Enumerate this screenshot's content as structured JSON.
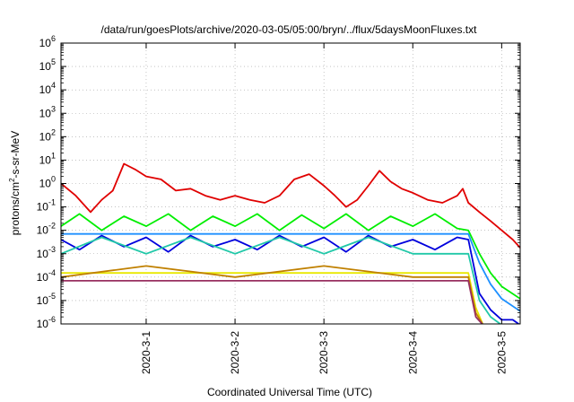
{
  "chart_data": {
    "type": "line",
    "title": "/data/run/goesPlots/archive/2020-03-05/05:00/bryn/../flux/5daysMoonFluxes.txt",
    "xlabel": "Coordinated Universal Time (UTC)",
    "ylabel": "protons/cm²-s-sr-MeV",
    "y_scale": "log",
    "ylim_exponent": [
      -6,
      6
    ],
    "xlim": [
      "2020-02-29 01:00",
      "2020-03-05 05:00"
    ],
    "x_ticks": [
      "2020-3-1",
      "2020-3-2",
      "2020-3-3",
      "2020-3-4",
      "2020-3-5"
    ],
    "y_tick_exponents": [
      -6,
      -5,
      -4,
      -3,
      -2,
      -1,
      0,
      1,
      2,
      3,
      4,
      5,
      6
    ],
    "grid": true,
    "series": [
      {
        "color": "#e00000",
        "x": [
          "2020-02-29 01:00",
          "2020-02-29 05:00",
          "2020-02-29 09:00",
          "2020-02-29 12:00",
          "2020-02-29 15:00",
          "2020-02-29 18:00",
          "2020-02-29 21:00",
          "2020-03-01 00:00",
          "2020-03-01 04:00",
          "2020-03-01 08:00",
          "2020-03-01 12:00",
          "2020-03-01 16:00",
          "2020-03-01 20:00",
          "2020-03-02 00:00",
          "2020-03-02 04:00",
          "2020-03-02 08:00",
          "2020-03-02 12:00",
          "2020-03-02 16:00",
          "2020-03-02 20:00",
          "2020-03-03 00:00",
          "2020-03-03 03:00",
          "2020-03-03 06:00",
          "2020-03-03 09:00",
          "2020-03-03 12:00",
          "2020-03-03 15:00",
          "2020-03-03 18:00",
          "2020-03-03 21:00",
          "2020-03-04 00:00",
          "2020-03-04 04:00",
          "2020-03-04 08:00",
          "2020-03-04 12:00",
          "2020-03-04 13:30",
          "2020-03-04 15:00",
          "2020-03-04 18:00",
          "2020-03-04 21:00",
          "2020-03-05 00:00",
          "2020-03-05 03:00",
          "2020-03-05 05:00"
        ],
        "y": [
          1.0,
          0.3,
          0.06,
          0.2,
          0.5,
          7.0,
          4.0,
          2.0,
          1.5,
          0.5,
          0.6,
          0.3,
          0.2,
          0.3,
          0.2,
          0.15,
          0.3,
          1.5,
          2.5,
          0.8,
          0.3,
          0.1,
          0.2,
          0.8,
          3.5,
          1.2,
          0.6,
          0.4,
          0.2,
          0.15,
          0.3,
          0.6,
          0.15,
          0.06,
          0.025,
          0.01,
          0.004,
          0.0018
        ]
      },
      {
        "color": "#00ee00",
        "x": [
          "2020-02-29 01:00",
          "2020-02-29 06:00",
          "2020-02-29 12:00",
          "2020-02-29 18:00",
          "2020-03-01 00:00",
          "2020-03-01 06:00",
          "2020-03-01 12:00",
          "2020-03-01 18:00",
          "2020-03-02 00:00",
          "2020-03-02 06:00",
          "2020-03-02 12:00",
          "2020-03-02 18:00",
          "2020-03-03 00:00",
          "2020-03-03 06:00",
          "2020-03-03 12:00",
          "2020-03-03 18:00",
          "2020-03-04 00:00",
          "2020-03-04 06:00",
          "2020-03-04 12:00",
          "2020-03-04 15:00",
          "2020-03-04 18:00",
          "2020-03-04 21:00",
          "2020-03-05 00:00",
          "2020-03-05 05:00"
        ],
        "y": [
          0.015,
          0.05,
          0.01,
          0.04,
          0.015,
          0.05,
          0.01,
          0.04,
          0.015,
          0.05,
          0.01,
          0.045,
          0.012,
          0.05,
          0.01,
          0.04,
          0.015,
          0.05,
          0.012,
          0.01,
          0.001,
          0.00015,
          4e-05,
          1.2e-05
        ]
      },
      {
        "color": "#0000dd",
        "x": [
          "2020-02-29 01:00",
          "2020-02-29 06:00",
          "2020-02-29 12:00",
          "2020-02-29 18:00",
          "2020-03-01 00:00",
          "2020-03-01 06:00",
          "2020-03-01 12:00",
          "2020-03-01 18:00",
          "2020-03-02 00:00",
          "2020-03-02 06:00",
          "2020-03-02 12:00",
          "2020-03-02 18:00",
          "2020-03-03 00:00",
          "2020-03-03 06:00",
          "2020-03-03 12:00",
          "2020-03-03 18:00",
          "2020-03-04 00:00",
          "2020-03-04 06:00",
          "2020-03-04 12:00",
          "2020-03-04 15:00",
          "2020-03-04 18:00",
          "2020-03-04 21:00",
          "2020-03-05 00:00",
          "2020-03-05 03:00",
          "2020-03-05 05:00"
        ],
        "y": [
          0.004,
          0.0015,
          0.006,
          0.002,
          0.005,
          0.0012,
          0.006,
          0.002,
          0.004,
          0.0015,
          0.006,
          0.002,
          0.005,
          0.0012,
          0.006,
          0.002,
          0.004,
          0.0015,
          0.005,
          0.004,
          2e-05,
          4e-06,
          1.5e-06,
          1.5e-06,
          9e-07
        ]
      },
      {
        "color": "#1e90ff",
        "x": [
          "2020-02-29 01:00",
          "2020-03-01 00:00",
          "2020-03-02 00:00",
          "2020-03-03 00:00",
          "2020-03-04 00:00",
          "2020-03-04 15:00",
          "2020-03-04 18:00",
          "2020-03-04 21:00",
          "2020-03-05 00:00",
          "2020-03-05 05:00"
        ],
        "y": [
          0.007,
          0.007,
          0.007,
          0.007,
          0.007,
          0.007,
          0.0004,
          5e-05,
          1.2e-05,
          3.5e-06
        ]
      },
      {
        "color": "#20c8a8",
        "x": [
          "2020-02-29 01:00",
          "2020-02-29 12:00",
          "2020-03-01 00:00",
          "2020-03-01 12:00",
          "2020-03-02 00:00",
          "2020-03-02 12:00",
          "2020-03-03 00:00",
          "2020-03-03 12:00",
          "2020-03-04 00:00",
          "2020-03-04 15:00",
          "2020-03-04 18:00",
          "2020-03-04 21:00",
          "2020-03-05 00:00"
        ],
        "y": [
          0.001,
          0.005,
          0.001,
          0.005,
          0.001,
          0.005,
          0.001,
          0.005,
          0.001,
          0.001,
          1e-05,
          2e-06,
          9e-07
        ]
      },
      {
        "color": "#e8e800",
        "x": [
          "2020-02-29 01:00",
          "2020-03-01 00:00",
          "2020-03-02 00:00",
          "2020-03-03 00:00",
          "2020-03-04 00:00",
          "2020-03-04 15:00",
          "2020-03-04 17:00",
          "2020-03-04 19:00"
        ],
        "y": [
          0.00015,
          0.00015,
          0.00015,
          0.00015,
          0.00015,
          0.00015,
          5e-06,
          9e-07
        ]
      },
      {
        "color": "#c08000",
        "x": [
          "2020-02-29 01:00",
          "2020-03-01 00:00",
          "2020-03-02 00:00",
          "2020-03-03 00:00",
          "2020-03-04 00:00",
          "2020-03-04 15:00",
          "2020-03-04 17:00",
          "2020-03-04 19:00"
        ],
        "y": [
          0.0001,
          0.0003,
          0.0001,
          0.0003,
          0.0001,
          0.0001,
          3e-06,
          9e-07
        ]
      },
      {
        "color": "#983060",
        "x": [
          "2020-02-29 01:00",
          "2020-03-01 00:00",
          "2020-03-02 00:00",
          "2020-03-03 00:00",
          "2020-03-04 00:00",
          "2020-03-04 15:00",
          "2020-03-04 17:00",
          "2020-03-04 19:00"
        ],
        "y": [
          7e-05,
          7e-05,
          7e-05,
          7e-05,
          7e-05,
          7e-05,
          2e-06,
          9e-07
        ]
      }
    ]
  }
}
